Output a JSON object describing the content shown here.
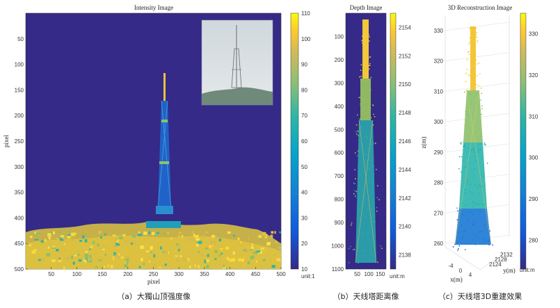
{
  "captions": {
    "a": "（a）大獨山顶强度像",
    "b": "（b）天线塔距离像",
    "c": "（c）天线塔3D重建效果"
  },
  "chart_data": [
    {
      "id": "intensity",
      "type": "heatmap",
      "title": "Intensity Image",
      "xlabel": "pixel",
      "ylabel": "pixel",
      "xlim": [
        0,
        500
      ],
      "ylim": [
        500,
        0
      ],
      "xticks": [
        50,
        100,
        150,
        200,
        250,
        300,
        350,
        400,
        450,
        500
      ],
      "yticks": [
        50,
        100,
        150,
        200,
        250,
        300,
        350,
        400,
        450,
        500
      ],
      "colorbar": {
        "min": 10,
        "max": 110,
        "ticks": [
          10,
          20,
          30,
          40,
          50,
          60,
          70,
          80,
          90,
          100,
          110
        ],
        "unit": "unit:1"
      },
      "colors": {
        "low": "#2c2c7e",
        "mid": "#26a8a8",
        "high": "#f7e23a"
      },
      "inset_photo": true
    },
    {
      "id": "depth",
      "type": "heatmap",
      "title": "Depth Image",
      "xlabel": "",
      "ylabel": "",
      "xlim": [
        0,
        175
      ],
      "ylim": [
        1100,
        0
      ],
      "xticks": [
        50,
        100,
        150
      ],
      "yticks": [
        100,
        200,
        300,
        400,
        500,
        600,
        700,
        800,
        900,
        1000,
        1100
      ],
      "colorbar": {
        "min": 2137,
        "max": 2155,
        "ticks": [
          2138,
          2140,
          2142,
          2144,
          2146,
          2148,
          2150,
          2152,
          2154
        ],
        "unit": "unit:m"
      }
    },
    {
      "id": "recon3d",
      "type": "scatter",
      "title": "3D Reconstruction Image",
      "xlabel": "x(m)",
      "ylabel": "y(m)",
      "zlabel": "z(m)",
      "zlim": [
        255,
        335
      ],
      "zticks": [
        260,
        270,
        280,
        290,
        300,
        310,
        320,
        330
      ],
      "xticks": [
        -4,
        0,
        4
      ],
      "yticks": [
        2124,
        2128,
        2132
      ],
      "colorbar": {
        "min": 273,
        "max": 335,
        "ticks": [
          280,
          290,
          300,
          310,
          320,
          330
        ],
        "unit": "unit:m"
      }
    }
  ]
}
